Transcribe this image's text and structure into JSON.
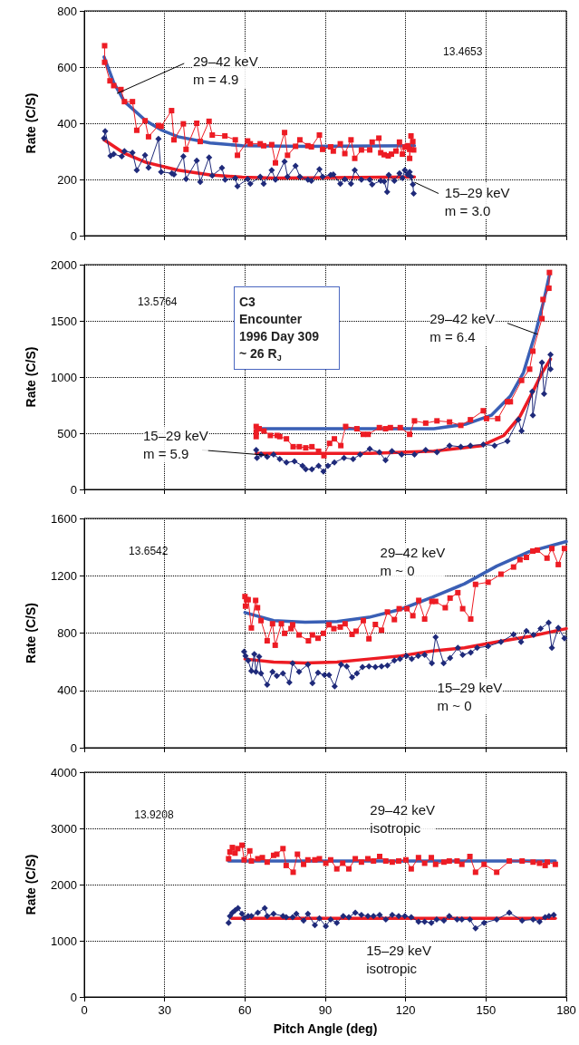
{
  "chart_data": [
    {
      "type": "line",
      "ylabel": "Rate (C/S)",
      "xlim": [
        0,
        180
      ],
      "xticks": [
        0,
        30,
        60,
        90,
        120,
        150,
        180
      ],
      "ylim": [
        0,
        800
      ],
      "yticks": [
        0,
        200,
        400,
        600,
        800
      ],
      "grid": true,
      "tick_labels": "y",
      "line_style": "solid",
      "annotations": [
        {
          "text": "29–42 keV\nm = 4.9",
          "x": 12.2,
          "y": 506
        },
        {
          "text": "15–29 keV\nm = 3.0",
          "x": 123.3,
          "y": 190
        },
        "13.4653"
      ],
      "series": [
        {
          "color": "#ed1c24",
          "marker": "square",
          "x": [
            7.6,
            7.6,
            9.6,
            11,
            13.7,
            15,
            18,
            19.6,
            22.7,
            24,
            27.7,
            28.7,
            32.6,
            33.5,
            37,
            38,
            42,
            43.3,
            46.6,
            47.8,
            52.5,
            56.4,
            57.2,
            61,
            62,
            65.7,
            67,
            70,
            71.4,
            74.8,
            75.9,
            78.9,
            80.5,
            83.5,
            84.8,
            87.8,
            89,
            92,
            93,
            95.6,
            97.3,
            99.6,
            101,
            103.5,
            106.6,
            107.5,
            110,
            110.7,
            112,
            113.5,
            114.7,
            116.4,
            117.7,
            118.8,
            119.7,
            120.7,
            121.5,
            121.5,
            122,
            122.7,
            123
          ],
          "values": [
            676,
            617,
            551,
            534,
            520,
            477,
            477,
            375,
            409,
            352,
            392,
            389,
            445,
            341,
            398,
            307,
            400,
            335,
            407,
            358,
            355,
            341,
            286,
            337,
            327,
            327,
            320,
            324,
            259,
            367,
            286,
            318,
            341,
            320,
            316,
            358,
            307,
            316,
            301,
            327,
            292,
            341,
            275,
            305,
            305,
            333,
            347,
            295,
            288,
            284,
            290,
            301,
            333,
            290,
            315,
            320,
            307,
            275,
            355,
            335,
            305
          ]
        },
        {
          "color": "#1f2a7a",
          "marker": "diamond",
          "x": [
            7.4,
            7.8,
            9.8,
            11,
            14,
            15,
            18,
            19.6,
            22.7,
            24,
            27.7,
            28.7,
            32.7,
            33.5,
            37,
            38,
            42,
            43.3,
            46.6,
            47.8,
            51.4,
            52.6,
            56.4,
            57.2,
            61,
            62,
            65.7,
            67,
            70,
            71.4,
            74.8,
            75.9,
            78.9,
            80.5,
            83.5,
            84.8,
            87.8,
            89,
            92,
            93,
            95.6,
            97.3,
            99.6,
            101,
            103.5,
            106.6,
            107.5,
            110.7,
            112,
            113.1,
            113.7,
            115.8,
            117.7,
            118.8,
            119.7,
            120.7,
            121.5,
            122,
            122.7,
            123
          ],
          "values": [
            347,
            372,
            284,
            290,
            282,
            301,
            295,
            233,
            286,
            242,
            344,
            227,
            222,
            218,
            282,
            202,
            267,
            191,
            278,
            214,
            241,
            199,
            205,
            176,
            202,
            185,
            210,
            185,
            233,
            199,
            264,
            210,
            248,
            210,
            199,
            195,
            236,
            210,
            216,
            218,
            185,
            201,
            185,
            233,
            199,
            199,
            182,
            195,
            193,
            156,
            216,
            195,
            222,
            205,
            233,
            218,
            227,
            210,
            182,
            150
          ]
        },
        {
          "color": "#3a5fb5",
          "marker": "none",
          "x": [
            7.4,
            11,
            15,
            23,
            29,
            35,
            47,
            59,
            83,
            123.3
          ],
          "values": [
            636,
            545,
            477,
            409,
            375,
            352,
            330,
            320,
            318,
            320
          ]
        },
        {
          "color": "#ed1c24",
          "marker": "none",
          "x": [
            7.4,
            14.6,
            23,
            35,
            47,
            59,
            71,
            123.3
          ],
          "values": [
            341,
            295,
            261,
            233,
            216,
            208,
            205,
            209
          ]
        }
      ]
    },
    {
      "type": "line",
      "ylabel": "Rate (C/S)",
      "xlim": [
        0,
        180
      ],
      "xticks": [
        0,
        30,
        60,
        90,
        120,
        150,
        180
      ],
      "ylim": [
        0,
        2000
      ],
      "yticks": [
        0,
        500,
        1000,
        1500,
        2000
      ],
      "grid": true,
      "tick_labels": "y",
      "line_style": "solid",
      "annotations": [
        "C3\nEncounter\n1996 Day 309\n~ 26 R$_{J}$",
        {
          "text": "29–42 keV\nm = 6.4",
          "x": 169.3,
          "y": 1380
        },
        {
          "text": "15–29 keV\nm = 5.9",
          "x": 68.3,
          "y": 304
        },
        "13.5764"
      ],
      "series": [
        {
          "color": "#ed1c24",
          "marker": "square",
          "x": [
            64.2,
            64.2,
            64.2,
            65.3,
            67.1,
            69.5,
            72,
            73,
            75.5,
            78,
            80.3,
            82.7,
            85,
            87.5,
            89.5,
            91.6,
            93.4,
            95.8,
            97.6,
            101.8,
            104.2,
            106,
            110.2,
            112.5,
            114.3,
            118,
            121.5,
            123.3,
            127.5,
            131.7,
            136.4,
            140.6,
            144.2,
            149,
            150.2,
            154.4,
            158,
            159.1,
            163.3,
            166.3,
            167.5,
            170.9,
            171.3,
            173.5,
            173.7
          ],
          "values": [
            560,
            510,
            470,
            540,
            520,
            480,
            480,
            470,
            450,
            380,
            380,
            370,
            380,
            340,
            300,
            410,
            450,
            390,
            560,
            540,
            490,
            490,
            550,
            540,
            550,
            550,
            490,
            610,
            590,
            610,
            600,
            570,
            620,
            700,
            630,
            630,
            780,
            780,
            970,
            1070,
            1230,
            1520,
            1690,
            1790,
            1930
          ]
        },
        {
          "color": "#1f2a7a",
          "marker": "diamond",
          "x": [
            64.2,
            64.5,
            66,
            68.3,
            70.7,
            73,
            75.5,
            78.5,
            81.5,
            82.7,
            85,
            87.5,
            89.3,
            91,
            93.4,
            97,
            100.4,
            103,
            106.6,
            110.2,
            112.5,
            114.9,
            118.5,
            123.3,
            127.5,
            131.7,
            136.4,
            140.6,
            144.2,
            149,
            153.2,
            158,
            162.1,
            163.3,
            167.3,
            167.5,
            170.9,
            171.7,
            174.1,
            174.1
          ],
          "values": [
            350,
            280,
            310,
            290,
            310,
            270,
            240,
            250,
            210,
            180,
            180,
            210,
            160,
            210,
            240,
            280,
            270,
            310,
            360,
            330,
            260,
            340,
            310,
            310,
            350,
            330,
            390,
            380,
            390,
            400,
            390,
            430,
            620,
            520,
            870,
            660,
            1130,
            850,
            1200,
            1070
          ]
        },
        {
          "color": "#3a5fb5",
          "marker": "none",
          "x": [
            64.2,
            100,
            130.5,
            142.4,
            152,
            159.1,
            164,
            168.7,
            171.7,
            173.8
          ],
          "values": [
            540,
            540,
            540,
            580,
            660,
            830,
            1040,
            1410,
            1690,
            1920
          ]
        },
        {
          "color": "#ed1c24",
          "marker": "none",
          "x": [
            64.2,
            106.6,
            130.5,
            148.4,
            156.7,
            162.7,
            167.5,
            171,
            174.1
          ],
          "values": [
            320,
            320,
            340,
            390,
            480,
            650,
            870,
            1040,
            1160
          ]
        }
      ]
    },
    {
      "type": "line",
      "ylabel": "Rate (C/S)",
      "xlim": [
        0,
        180
      ],
      "xticks": [
        0,
        30,
        60,
        90,
        120,
        150,
        180
      ],
      "ylim": [
        0,
        1600
      ],
      "yticks": [
        0,
        400,
        800,
        1200,
        1600
      ],
      "grid": true,
      "tick_labels": "y",
      "line_style": "solid",
      "annotations": [
        "29–42 keV\nm ~ 0",
        "15–29 keV\nm ~ 0",
        "13.6542"
      ],
      "series": [
        {
          "color": "#ed1c24",
          "marker": "square",
          "x": [
            60,
            60.2,
            60.6,
            61.2,
            62.4,
            64,
            64.7,
            66,
            68.3,
            70.3,
            71.3,
            73.6,
            74.8,
            77.2,
            77.8,
            80.2,
            83.7,
            85.2,
            87.3,
            89.3,
            91.4,
            93.2,
            95.6,
            97.4,
            100,
            101.5,
            104.2,
            106.3,
            108.7,
            111,
            113.2,
            115.8,
            117.6,
            120.5,
            122.7,
            124.9,
            127.1,
            129.8,
            131.2,
            134.8,
            136.6,
            139.5,
            141.3,
            144.3,
            146.1,
            150.8,
            155.6,
            160.3,
            162.7,
            165.1,
            167.5,
            169.2,
            172.8,
            174.6,
            177,
            179.3
          ],
          "values": [
            1055,
            988,
            1033,
            1033,
            836,
            1028,
            977,
            887,
            746,
            865,
            715,
            865,
            798,
            831,
            858,
            787,
            746,
            787,
            764,
            798,
            858,
            831,
            842,
            865,
            791,
            813,
            887,
            760,
            860,
            820,
            947,
            894,
            970,
            970,
            921,
            1028,
            898,
            1021,
            1021,
            977,
            1044,
            1082,
            970,
            898,
            1140,
            1155,
            1211,
            1261,
            1312,
            1328,
            1372,
            1379,
            1323,
            1390,
            1278,
            1390
          ]
        },
        {
          "color": "#1f2a7a",
          "marker": "diamond",
          "x": [
            59.7,
            60.2,
            61.2,
            62.4,
            63.5,
            64.1,
            65.3,
            66,
            68.3,
            70.3,
            71.9,
            74.2,
            76.6,
            77.8,
            80.2,
            83.5,
            85.2,
            87.3,
            89.7,
            91.4,
            93.5,
            95.9,
            98,
            100,
            101.8,
            103.9,
            106.3,
            108.7,
            111,
            113.2,
            115.8,
            117.9,
            120.3,
            122.3,
            124.7,
            127.1,
            129.8,
            131.2,
            134.2,
            136.6,
            139.5,
            141.3,
            144.3,
            146.7,
            150.8,
            155.6,
            160.3,
            163.1,
            165.1,
            167.8,
            170.4,
            173.4,
            174.6,
            177,
            179.3
          ],
          "values": [
            671,
            641,
            608,
            536,
            653,
            530,
            635,
            519,
            440,
            530,
            501,
            519,
            456,
            590,
            530,
            581,
            451,
            523,
            507,
            507,
            429,
            581,
            568,
            492,
            519,
            563,
            568,
            563,
            568,
            574,
            608,
            619,
            641,
            619,
            641,
            648,
            590,
            771,
            590,
            626,
            697,
            648,
            664,
            697,
            708,
            738,
            791,
            738,
            814,
            787,
            831,
            872,
            697,
            836,
            764
          ]
        },
        {
          "color": "#3a5fb5",
          "marker": "none",
          "x": [
            60,
            70.7,
            82.5,
            94.4,
            106.3,
            118.2,
            130,
            142,
            154,
            166.2,
            180
          ],
          "values": [
            943,
            887,
            876,
            881,
            910,
            966,
            1050,
            1144,
            1267,
            1368,
            1439
          ]
        },
        {
          "color": "#ed1c24",
          "marker": "none",
          "x": [
            60,
            70.7,
            82.5,
            94.4,
            106.3,
            118.2,
            130,
            142,
            154,
            166.2,
            180
          ],
          "values": [
            619,
            597,
            592,
            597,
            619,
            641,
            675,
            697,
            738,
            776,
            831
          ]
        }
      ]
    },
    {
      "type": "line",
      "xlabel": "Pitch Angle (deg)",
      "ylabel": "Rate (C/S)",
      "xlim": [
        0,
        180
      ],
      "xticks": [
        0,
        30,
        60,
        90,
        120,
        150,
        180
      ],
      "ylim": [
        0,
        4000
      ],
      "yticks": [
        0,
        1000,
        2000,
        3000,
        4000
      ],
      "grid": true,
      "line_style": "solid",
      "annotations": [
        "29–42 keV\nisotropic",
        "15–29 keV\nisotropic",
        "13.9208"
      ],
      "series": [
        {
          "color": "#ed1c24",
          "marker": "square",
          "x": [
            53.9,
            54.4,
            55.3,
            56.3,
            57.3,
            58.9,
            59.7,
            61.8,
            62.4,
            64.8,
            66.5,
            68.3,
            70.7,
            71.9,
            74.2,
            75.4,
            78,
            79.6,
            81.9,
            83.5,
            86.1,
            87.8,
            90.2,
            92,
            94.3,
            96.5,
            98.8,
            101.2,
            103.5,
            105.9,
            108,
            110.3,
            112.6,
            115,
            117.4,
            120.1,
            122.1,
            124.8,
            127.1,
            129.6,
            131.2,
            134.3,
            136.3,
            139.2,
            141,
            144,
            146.1,
            149.3,
            154,
            158.7,
            163.5,
            167.6,
            170,
            172.1,
            172.9,
            175.9
          ],
          "values": [
            2460,
            2580,
            2660,
            2560,
            2640,
            2700,
            2440,
            2600,
            2420,
            2460,
            2480,
            2400,
            2520,
            2540,
            2640,
            2340,
            2220,
            2540,
            2360,
            2440,
            2440,
            2460,
            2380,
            2440,
            2280,
            2380,
            2280,
            2460,
            2400,
            2460,
            2420,
            2500,
            2420,
            2400,
            2420,
            2440,
            2280,
            2480,
            2380,
            2480,
            2360,
            2400,
            2420,
            2420,
            2360,
            2500,
            2220,
            2360,
            2220,
            2420,
            2420,
            2400,
            2380,
            2340,
            2400,
            2360
          ]
        },
        {
          "color": "#1f2a7a",
          "marker": "diamond",
          "x": [
            53.9,
            54.4,
            55.3,
            56.3,
            57.4,
            58.9,
            59.7,
            61.2,
            62.4,
            64.8,
            67.4,
            68.3,
            70.7,
            74.2,
            75.4,
            77.8,
            79.2,
            81.9,
            83.5,
            86.1,
            87.8,
            90.2,
            92,
            94.3,
            96.7,
            98.8,
            101.2,
            103.5,
            105.9,
            108,
            110.3,
            112.6,
            115,
            117.4,
            119.7,
            122.1,
            124.8,
            127.1,
            129.6,
            131.6,
            134.3,
            136.3,
            139.2,
            141,
            144,
            146.1,
            149.3,
            154,
            158.7,
            163.5,
            167.6,
            170,
            172.1,
            173.5,
            175.3
          ],
          "values": [
            1320,
            1440,
            1500,
            1540,
            1580,
            1480,
            1400,
            1440,
            1440,
            1500,
            1580,
            1440,
            1480,
            1440,
            1420,
            1420,
            1480,
            1360,
            1480,
            1280,
            1400,
            1260,
            1380,
            1320,
            1440,
            1420,
            1500,
            1460,
            1440,
            1440,
            1460,
            1380,
            1460,
            1440,
            1440,
            1420,
            1340,
            1340,
            1320,
            1380,
            1360,
            1440,
            1380,
            1380,
            1380,
            1220,
            1320,
            1380,
            1500,
            1360,
            1380,
            1340,
            1420,
            1440,
            1460
          ]
        },
        {
          "color": "#3a5fb5",
          "marker": "none",
          "x": [
            53.9,
            175.9
          ],
          "values": [
            2420,
            2420
          ]
        },
        {
          "color": "#ed1c24",
          "marker": "none",
          "x": [
            55,
            175.9
          ],
          "values": [
            1400,
            1400
          ]
        }
      ]
    }
  ]
}
